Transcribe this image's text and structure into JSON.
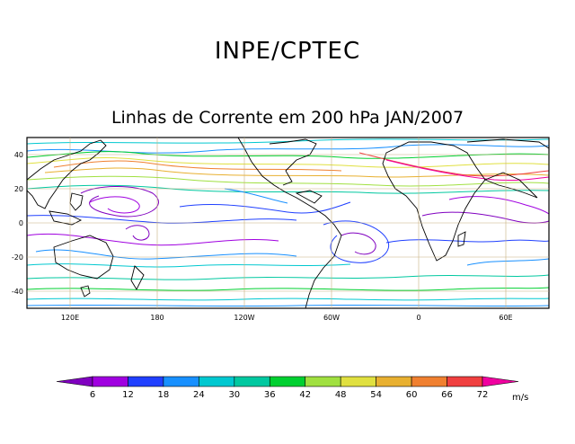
{
  "header": {
    "title": "INPE/CPTEC"
  },
  "map": {
    "title": "Linhas de Corrente em 200 hPa JAN/2007",
    "lat_ticks": [
      40,
      20,
      0,
      -20,
      -40
    ],
    "lon_ticks": [
      "120E",
      "180",
      "120W",
      "60W",
      "0",
      "60E"
    ],
    "lat_range": [
      -50,
      50
    ],
    "lon_range": [
      "90E",
      "90E"
    ]
  },
  "colorbar": {
    "labels": [
      "6",
      "12",
      "18",
      "24",
      "30",
      "36",
      "42",
      "48",
      "54",
      "60",
      "66",
      "72"
    ],
    "units": "m/s",
    "colors": [
      "#8000c0",
      "#a000e0",
      "#2040ff",
      "#1890ff",
      "#00c8d0",
      "#00c8a0",
      "#00d030",
      "#a0e040",
      "#e0e040",
      "#e8b030",
      "#f08030",
      "#f04040",
      "#f000a0"
    ]
  }
}
